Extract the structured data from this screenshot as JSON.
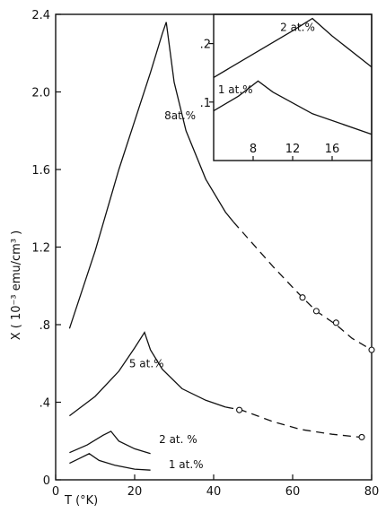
{
  "chart_data": [
    {
      "type": "line",
      "xlabel": "T (°K)",
      "ylabel": "X ( 10⁻³ emu/cm³ )",
      "xlim": [
        0,
        80
      ],
      "ylim": [
        0,
        2.4
      ],
      "x_ticks": [
        {
          "value": 0,
          "label": "0"
        },
        {
          "value": 20,
          "label": "20"
        },
        {
          "value": 40,
          "label": "40"
        },
        {
          "value": 60,
          "label": "60"
        },
        {
          "value": 80,
          "label": "80"
        }
      ],
      "y_ticks": [
        {
          "value": 0,
          "label": "0"
        },
        {
          "value": 0.4,
          "label": ".4"
        },
        {
          "value": 0.8,
          "label": ".8"
        },
        {
          "value": 1.2,
          "label": "1.2"
        },
        {
          "value": 1.6,
          "label": "1.6"
        },
        {
          "value": 2.0,
          "label": "2.0"
        },
        {
          "value": 2.4,
          "label": "2.4"
        }
      ],
      "grid": false,
      "series": [
        {
          "name": "8 at.%",
          "solid": [
            [
              3.5,
              0.78
            ],
            [
              10,
              1.18
            ],
            [
              16,
              1.6
            ],
            [
              20,
              1.85
            ],
            [
              24,
              2.1
            ],
            [
              27,
              2.3
            ],
            [
              28,
              2.36
            ],
            [
              30,
              2.05
            ],
            [
              33,
              1.8
            ],
            [
              38,
              1.55
            ],
            [
              43,
              1.38
            ],
            [
              45,
              1.33
            ]
          ],
          "dashed": [
            [
              45,
              1.33
            ],
            [
              55,
              1.1
            ],
            [
              62,
              0.95
            ],
            [
              66,
              0.87
            ],
            [
              71,
              0.8
            ],
            [
              75,
              0.73
            ],
            [
              80,
              0.67
            ]
          ],
          "markers": [
            [
              62.5,
              0.94
            ],
            [
              66,
              0.87
            ],
            [
              71,
              0.81
            ],
            [
              80,
              0.67
            ]
          ]
        },
        {
          "name": "5 at.%",
          "solid": [
            [
              3.5,
              0.33
            ],
            [
              10,
              0.43
            ],
            [
              16,
              0.56
            ],
            [
              20,
              0.68
            ],
            [
              22.5,
              0.76
            ],
            [
              24,
              0.67
            ],
            [
              27,
              0.57
            ],
            [
              32,
              0.47
            ],
            [
              38,
              0.41
            ],
            [
              43,
              0.375
            ]
          ],
          "dashed": [
            [
              43,
              0.375
            ],
            [
              47,
              0.36
            ],
            [
              55,
              0.3
            ],
            [
              62,
              0.26
            ],
            [
              70,
              0.235
            ],
            [
              77,
              0.22
            ],
            [
              79,
              0.2
            ]
          ],
          "markers": [
            [
              46.5,
              0.36
            ],
            [
              77.5,
              0.22
            ]
          ]
        },
        {
          "name": "2 at.%",
          "solid": [
            [
              3.5,
              0.14
            ],
            [
              8,
              0.18
            ],
            [
              12,
              0.23
            ],
            [
              14,
              0.25
            ],
            [
              16,
              0.2
            ],
            [
              20,
              0.16
            ],
            [
              24,
              0.135
            ]
          ]
        },
        {
          "name": "1 at.%",
          "solid": [
            [
              3.5,
              0.085
            ],
            [
              6,
              0.11
            ],
            [
              8.5,
              0.135
            ],
            [
              11,
              0.1
            ],
            [
              15,
              0.075
            ],
            [
              20,
              0.055
            ],
            [
              24,
              0.05
            ]
          ]
        }
      ],
      "annotations": [
        {
          "text": "8at.%",
          "x": 31.5,
          "y": 1.86
        },
        {
          "text": "5 at.%",
          "x": 23,
          "y": 0.58
        },
        {
          "text": "2 at. %",
          "x": 31,
          "y": 0.19
        },
        {
          "text": "1 at.%",
          "x": 33,
          "y": 0.06
        }
      ]
    },
    {
      "type": "line",
      "xlim": [
        4,
        20
      ],
      "ylim": [
        0,
        0.25
      ],
      "x_ticks": [
        {
          "value": 8,
          "label": "8"
        },
        {
          "value": 12,
          "label": "12"
        },
        {
          "value": 16,
          "label": "16"
        }
      ],
      "y_ticks": [
        {
          "value": 0.1,
          "label": ".1"
        },
        {
          "value": 0.2,
          "label": ".2"
        }
      ],
      "series": [
        {
          "name": "2 at.%",
          "solid": [
            [
              4,
              0.142
            ],
            [
              8,
              0.182
            ],
            [
              12,
              0.222
            ],
            [
              14,
              0.243
            ],
            [
              16,
              0.213
            ],
            [
              20,
              0.16
            ]
          ]
        },
        {
          "name": "1 at.%",
          "solid": [
            [
              4,
              0.085
            ],
            [
              6.5,
              0.11
            ],
            [
              8.5,
              0.136
            ],
            [
              10,
              0.117
            ],
            [
              14,
              0.08
            ],
            [
              20,
              0.045
            ]
          ]
        }
      ],
      "annotations": [
        {
          "text": "2 at.%",
          "x": 12.5,
          "y": 0.222
        },
        {
          "text": "1 at.%",
          "x": 6.2,
          "y": 0.115
        }
      ]
    }
  ]
}
